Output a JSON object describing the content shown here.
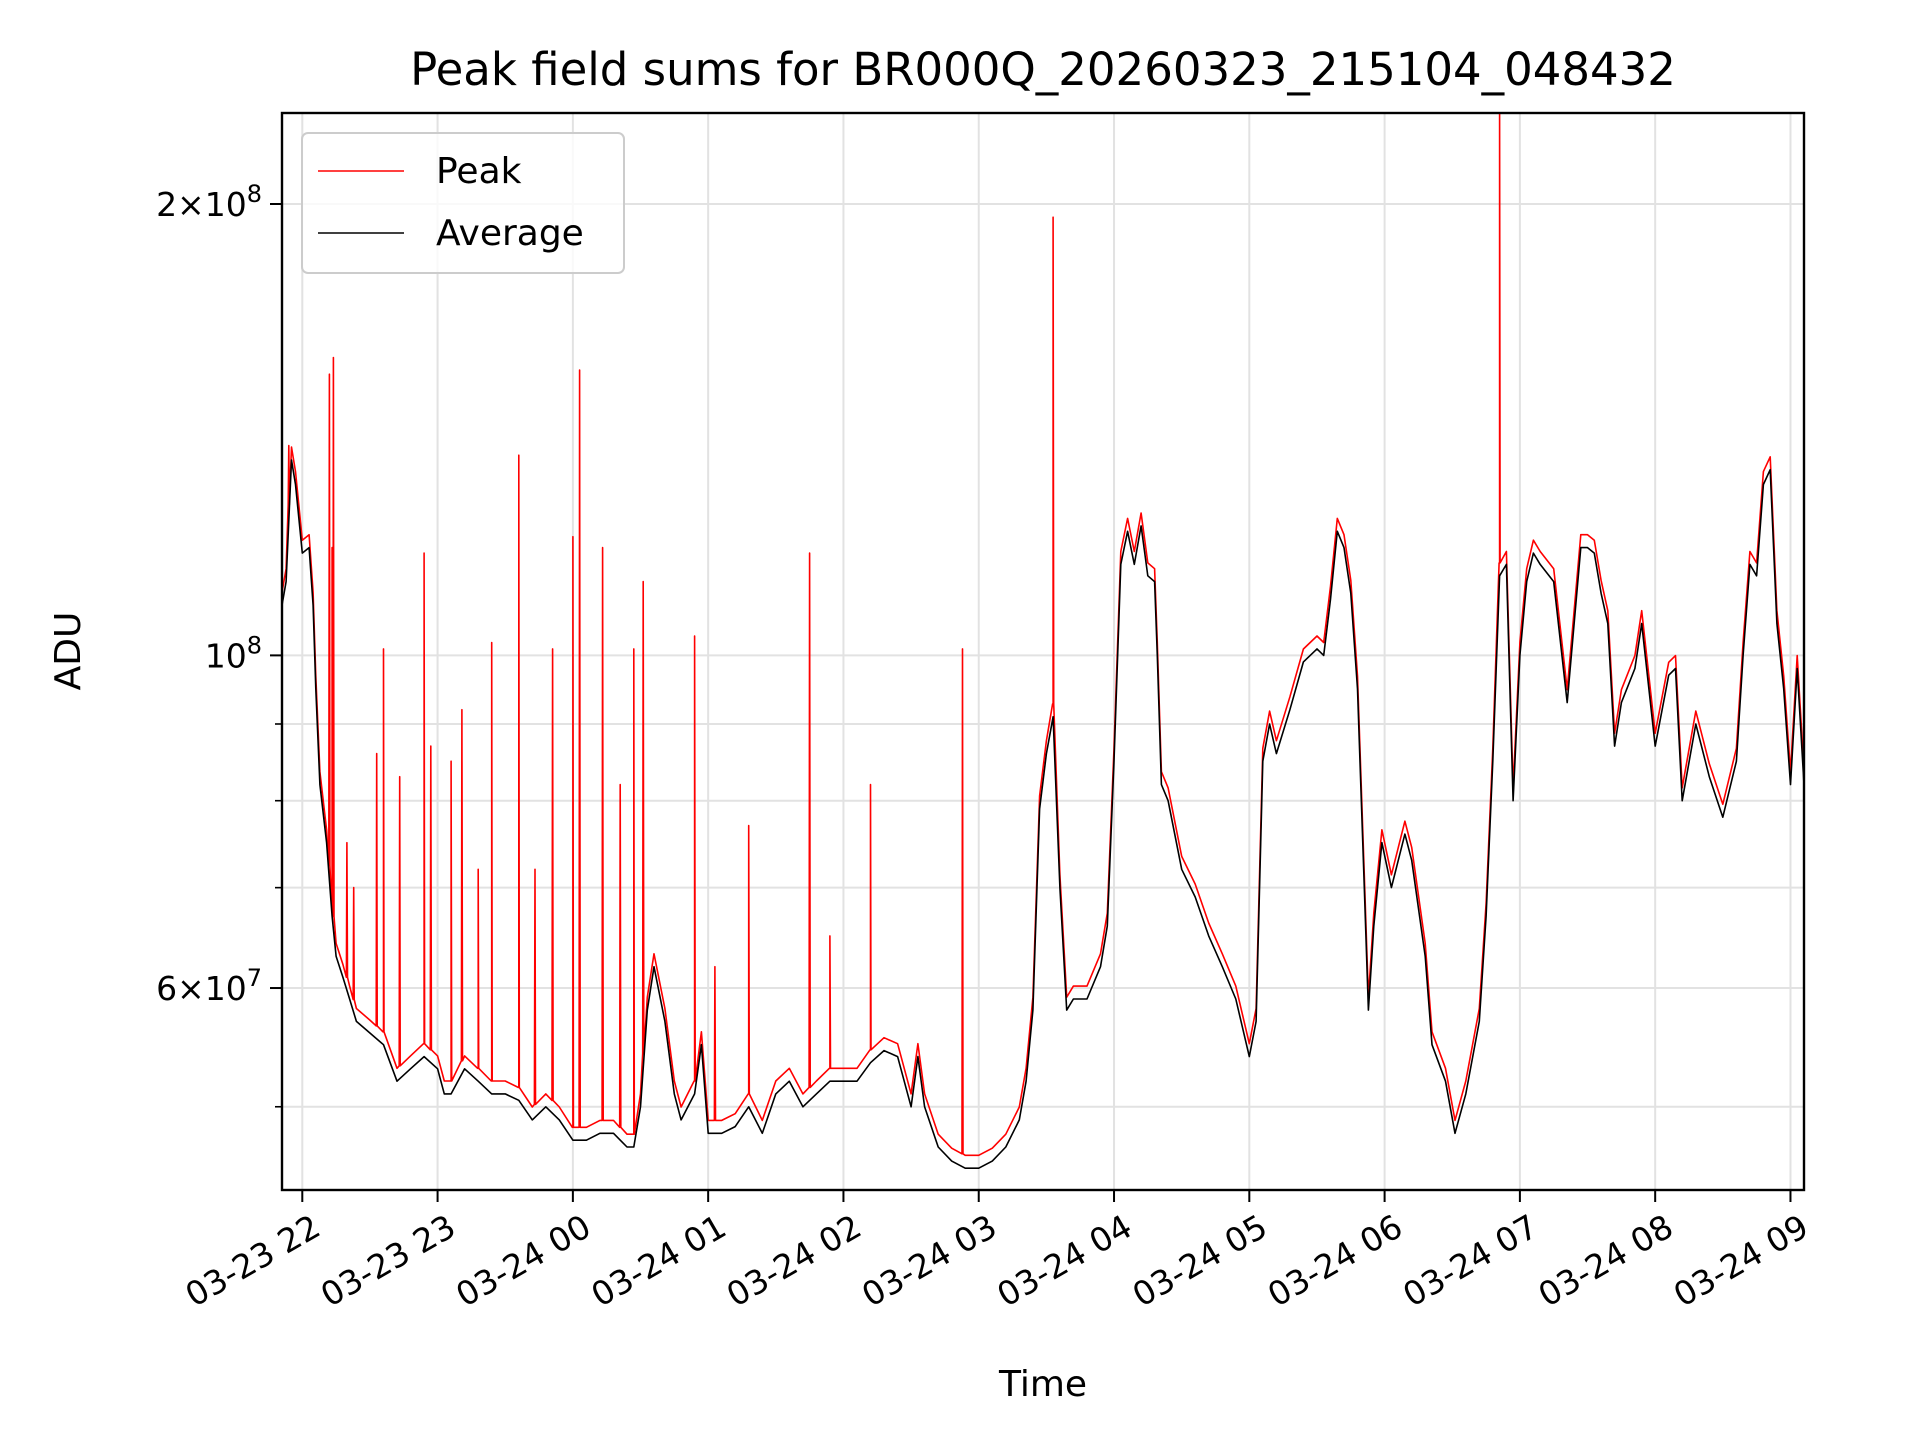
{
  "chart_data": {
    "type": "line",
    "title": "Peak field sums for BR000Q_20260323_215104_048432",
    "xlabel": "Time",
    "ylabel": "ADU",
    "yscale": "log",
    "ylim": [
      44000000,
      230000000
    ],
    "xlim_hours": [
      -0.15,
      11.1
    ],
    "grid": true,
    "legend_position": "upper-left",
    "x_ticks": [
      {
        "label": "03-23 22",
        "hour": 0
      },
      {
        "label": "03-23 23",
        "hour": 1
      },
      {
        "label": "03-24 00",
        "hour": 2
      },
      {
        "label": "03-24 01",
        "hour": 3
      },
      {
        "label": "03-24 02",
        "hour": 4
      },
      {
        "label": "03-24 03",
        "hour": 5
      },
      {
        "label": "03-24 04",
        "hour": 6
      },
      {
        "label": "03-24 05",
        "hour": 7
      },
      {
        "label": "03-24 06",
        "hour": 8
      },
      {
        "label": "03-24 07",
        "hour": 9
      },
      {
        "label": "03-24 08",
        "hour": 10
      },
      {
        "label": "03-24 09",
        "hour": 11
      }
    ],
    "y_ticks": [
      {
        "label": "2×10⁸",
        "mantissa": "2",
        "exponent": "8",
        "value": 200000000
      },
      {
        "label": "10⁸",
        "mantissa": "",
        "exponent": "8",
        "value": 100000000
      },
      {
        "label": "6×10⁷",
        "mantissa": "6",
        "exponent": "7",
        "value": 60000000
      }
    ],
    "y_minor_values": [
      50000000,
      70000000,
      80000000,
      90000000
    ],
    "series": [
      {
        "name": "Peak",
        "color": "#ff0000",
        "note": "Peak follows Average closely with sharp upward spikes",
        "spikes": [
          [
            -0.1,
            138000000
          ],
          [
            0.22,
            118000000
          ],
          [
            0.2,
            154000000
          ],
          [
            0.23,
            158000000
          ],
          [
            0.33,
            75000000
          ],
          [
            0.38,
            70000000
          ],
          [
            0.55,
            86000000
          ],
          [
            0.6,
            101000000
          ],
          [
            0.72,
            83000000
          ],
          [
            0.9,
            117000000
          ],
          [
            0.95,
            87000000
          ],
          [
            1.1,
            85000000
          ],
          [
            1.18,
            92000000
          ],
          [
            1.3,
            72000000
          ],
          [
            1.4,
            102000000
          ],
          [
            1.6,
            136000000
          ],
          [
            1.72,
            72000000
          ],
          [
            1.85,
            101000000
          ],
          [
            2.0,
            120000000
          ],
          [
            2.05,
            155000000
          ],
          [
            2.22,
            118000000
          ],
          [
            2.35,
            82000000
          ],
          [
            2.45,
            101000000
          ],
          [
            2.52,
            112000000
          ],
          [
            2.9,
            103000000
          ],
          [
            3.05,
            62000000
          ],
          [
            3.3,
            77000000
          ],
          [
            3.75,
            117000000
          ],
          [
            3.9,
            65000000
          ],
          [
            4.2,
            82000000
          ],
          [
            4.88,
            101000000
          ],
          [
            5.55,
            196000000
          ],
          [
            8.85,
            232000000
          ]
        ]
      },
      {
        "name": "Average",
        "color": "#000000",
        "points": [
          [
            -0.15,
            108000000
          ],
          [
            -0.12,
            112000000
          ],
          [
            -0.08,
            135000000
          ],
          [
            -0.05,
            130000000
          ],
          [
            0.0,
            117000000
          ],
          [
            0.05,
            118000000
          ],
          [
            0.08,
            108000000
          ],
          [
            0.1,
            95000000
          ],
          [
            0.13,
            82000000
          ],
          [
            0.18,
            75000000
          ],
          [
            0.22,
            67000000
          ],
          [
            0.25,
            63000000
          ],
          [
            0.3,
            61000000
          ],
          [
            0.35,
            59000000
          ],
          [
            0.4,
            57000000
          ],
          [
            0.5,
            56000000
          ],
          [
            0.6,
            55000000
          ],
          [
            0.7,
            52000000
          ],
          [
            0.8,
            53000000
          ],
          [
            0.9,
            54000000
          ],
          [
            1.0,
            53000000
          ],
          [
            1.05,
            51000000
          ],
          [
            1.1,
            51000000
          ],
          [
            1.2,
            53000000
          ],
          [
            1.3,
            52000000
          ],
          [
            1.4,
            51000000
          ],
          [
            1.5,
            51000000
          ],
          [
            1.6,
            50500000
          ],
          [
            1.7,
            49000000
          ],
          [
            1.8,
            50000000
          ],
          [
            1.9,
            49000000
          ],
          [
            2.0,
            47500000
          ],
          [
            2.1,
            47500000
          ],
          [
            2.2,
            48000000
          ],
          [
            2.3,
            48000000
          ],
          [
            2.4,
            47000000
          ],
          [
            2.45,
            47000000
          ],
          [
            2.5,
            50000000
          ],
          [
            2.55,
            58000000
          ],
          [
            2.6,
            62000000
          ],
          [
            2.68,
            57000000
          ],
          [
            2.75,
            51000000
          ],
          [
            2.8,
            49000000
          ],
          [
            2.9,
            51000000
          ],
          [
            2.95,
            55000000
          ],
          [
            3.0,
            48000000
          ],
          [
            3.1,
            48000000
          ],
          [
            3.2,
            48500000
          ],
          [
            3.3,
            50000000
          ],
          [
            3.4,
            48000000
          ],
          [
            3.5,
            51000000
          ],
          [
            3.6,
            52000000
          ],
          [
            3.7,
            50000000
          ],
          [
            3.8,
            51000000
          ],
          [
            3.9,
            52000000
          ],
          [
            4.0,
            52000000
          ],
          [
            4.1,
            52000000
          ],
          [
            4.2,
            53500000
          ],
          [
            4.3,
            54500000
          ],
          [
            4.4,
            54000000
          ],
          [
            4.5,
            50000000
          ],
          [
            4.55,
            54000000
          ],
          [
            4.6,
            50000000
          ],
          [
            4.7,
            47000000
          ],
          [
            4.8,
            46000000
          ],
          [
            4.9,
            45500000
          ],
          [
            5.0,
            45500000
          ],
          [
            5.1,
            46000000
          ],
          [
            5.2,
            47000000
          ],
          [
            5.3,
            49000000
          ],
          [
            5.35,
            52000000
          ],
          [
            5.4,
            58000000
          ],
          [
            5.45,
            79000000
          ],
          [
            5.5,
            86000000
          ],
          [
            5.55,
            91000000
          ],
          [
            5.6,
            70000000
          ],
          [
            5.65,
            58000000
          ],
          [
            5.7,
            59000000
          ],
          [
            5.8,
            59000000
          ],
          [
            5.9,
            62000000
          ],
          [
            5.95,
            66000000
          ],
          [
            6.0,
            85000000
          ],
          [
            6.05,
            115000000
          ],
          [
            6.1,
            121000000
          ],
          [
            6.15,
            115000000
          ],
          [
            6.2,
            122000000
          ],
          [
            6.25,
            113000000
          ],
          [
            6.3,
            112000000
          ],
          [
            6.32,
            100000000
          ],
          [
            6.35,
            82000000
          ],
          [
            6.4,
            80000000
          ],
          [
            6.5,
            72000000
          ],
          [
            6.6,
            69000000
          ],
          [
            6.7,
            65000000
          ],
          [
            6.8,
            62000000
          ],
          [
            6.9,
            59000000
          ],
          [
            7.0,
            54000000
          ],
          [
            7.05,
            57000000
          ],
          [
            7.1,
            85000000
          ],
          [
            7.15,
            90000000
          ],
          [
            7.2,
            86000000
          ],
          [
            7.3,
            92000000
          ],
          [
            7.4,
            99000000
          ],
          [
            7.5,
            101000000
          ],
          [
            7.55,
            100000000
          ],
          [
            7.6,
            109000000
          ],
          [
            7.65,
            121000000
          ],
          [
            7.7,
            118000000
          ],
          [
            7.75,
            110000000
          ],
          [
            7.8,
            95000000
          ],
          [
            7.85,
            70000000
          ],
          [
            7.88,
            58000000
          ],
          [
            7.92,
            66000000
          ],
          [
            7.98,
            75000000
          ],
          [
            8.05,
            70000000
          ],
          [
            8.15,
            76000000
          ],
          [
            8.2,
            73000000
          ],
          [
            8.3,
            63000000
          ],
          [
            8.35,
            55000000
          ],
          [
            8.45,
            52000000
          ],
          [
            8.52,
            48000000
          ],
          [
            8.6,
            51000000
          ],
          [
            8.7,
            57000000
          ],
          [
            8.75,
            67000000
          ],
          [
            8.8,
            85000000
          ],
          [
            8.85,
            113000000
          ],
          [
            8.9,
            115000000
          ],
          [
            8.95,
            80000000
          ],
          [
            9.0,
            100000000
          ],
          [
            9.05,
            112000000
          ],
          [
            9.1,
            117000000
          ],
          [
            9.15,
            115000000
          ],
          [
            9.25,
            112000000
          ],
          [
            9.3,
            102000000
          ],
          [
            9.35,
            93000000
          ],
          [
            9.45,
            118000000
          ],
          [
            9.5,
            118000000
          ],
          [
            9.55,
            117000000
          ],
          [
            9.6,
            110000000
          ],
          [
            9.65,
            105000000
          ],
          [
            9.7,
            87000000
          ],
          [
            9.75,
            93000000
          ],
          [
            9.85,
            98000000
          ],
          [
            9.9,
            105000000
          ],
          [
            10.0,
            87000000
          ],
          [
            10.1,
            97000000
          ],
          [
            10.15,
            98000000
          ],
          [
            10.2,
            80000000
          ],
          [
            10.3,
            90000000
          ],
          [
            10.4,
            83000000
          ],
          [
            10.5,
            78000000
          ],
          [
            10.6,
            85000000
          ],
          [
            10.65,
            100000000
          ],
          [
            10.7,
            115000000
          ],
          [
            10.75,
            113000000
          ],
          [
            10.8,
            130000000
          ],
          [
            10.85,
            133000000
          ],
          [
            10.9,
            105000000
          ],
          [
            10.95,
            95000000
          ],
          [
            11.0,
            82000000
          ],
          [
            11.05,
            98000000
          ],
          [
            11.1,
            82000000
          ]
        ]
      }
    ]
  }
}
